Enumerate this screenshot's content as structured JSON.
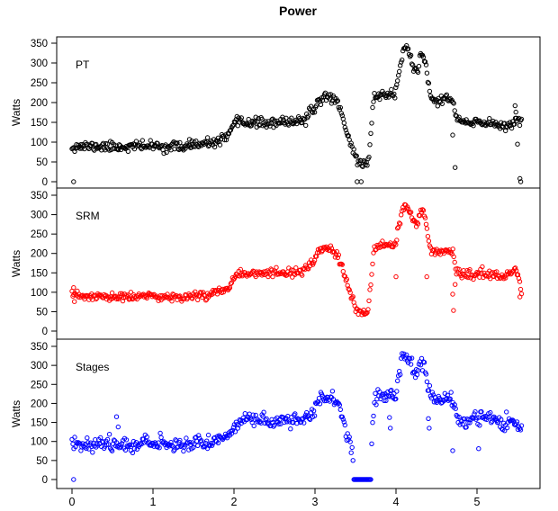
{
  "title": "Power",
  "y_axis_label": "Watts",
  "chart_data": {
    "type": "scatter",
    "title": "Power",
    "xlabel": "",
    "ylabel": "Watts",
    "point_style": "open-circle",
    "grid": false,
    "x_ticks": [
      0,
      1,
      2,
      3,
      4,
      5
    ],
    "y_ticks": [
      0,
      50,
      100,
      150,
      200,
      250,
      300,
      350
    ],
    "xlim": [
      -0.19,
      5.78
    ],
    "ylim": [
      0,
      350
    ],
    "x_range": [
      0,
      5.55
    ],
    "points_per_series": 505,
    "panels": [
      {
        "label": "PT",
        "color": "#000000",
        "seed": 11,
        "noise_sd": 6,
        "anchors": [
          [
            0,
            90
          ],
          [
            0.3,
            89
          ],
          [
            0.6,
            88
          ],
          [
            0.9,
            91
          ],
          [
            1.2,
            88
          ],
          [
            1.5,
            91
          ],
          [
            1.7,
            96
          ],
          [
            1.85,
            106
          ],
          [
            1.95,
            120
          ],
          [
            2.02,
            150
          ],
          [
            2.3,
            150
          ],
          [
            2.5,
            146
          ],
          [
            2.7,
            153
          ],
          [
            2.88,
            157
          ],
          [
            2.97,
            178
          ],
          [
            3.05,
            205
          ],
          [
            3.12,
            215
          ],
          [
            3.22,
            213
          ],
          [
            3.28,
            200
          ],
          [
            3.33,
            172
          ],
          [
            3.38,
            135
          ],
          [
            3.44,
            95
          ],
          [
            3.5,
            62
          ],
          [
            3.56,
            47
          ],
          [
            3.63,
            45
          ],
          [
            3.66,
            55
          ],
          [
            3.7,
            150
          ],
          [
            3.73,
            215
          ],
          [
            3.82,
            220
          ],
          [
            3.92,
            224
          ],
          [
            3.99,
            215
          ],
          [
            4.03,
            272
          ],
          [
            4.09,
            330
          ],
          [
            4.14,
            342
          ],
          [
            4.2,
            298
          ],
          [
            4.26,
            275
          ],
          [
            4.31,
            322
          ],
          [
            4.36,
            300
          ],
          [
            4.4,
            240
          ],
          [
            4.44,
            207
          ],
          [
            4.55,
            206
          ],
          [
            4.66,
            211
          ],
          [
            4.71,
            196
          ],
          [
            4.75,
            158
          ],
          [
            4.9,
            146
          ],
          [
            5.05,
            150
          ],
          [
            5.2,
            148
          ],
          [
            5.35,
            141
          ],
          [
            5.45,
            149
          ],
          [
            5.5,
            163
          ],
          [
            5.55,
            150
          ]
        ],
        "extra_points": [
          [
            0.02,
            0
          ],
          [
            1.45,
            107
          ],
          [
            1.48,
            103
          ],
          [
            3.52,
            0
          ],
          [
            3.57,
            0
          ],
          [
            4.7,
            118
          ],
          [
            4.73,
            36
          ],
          [
            5.47,
            192
          ],
          [
            5.48,
            176
          ],
          [
            5.5,
            95
          ],
          [
            5.53,
            8
          ],
          [
            5.54,
            0
          ]
        ]
      },
      {
        "label": "SRM",
        "color": "#ff0000",
        "seed": 23,
        "noise_sd": 5.5,
        "anchors": [
          [
            0,
            92
          ],
          [
            0.3,
            88
          ],
          [
            0.6,
            87
          ],
          [
            0.9,
            90
          ],
          [
            1.2,
            87
          ],
          [
            1.5,
            90
          ],
          [
            1.7,
            95
          ],
          [
            1.85,
            105
          ],
          [
            1.95,
            118
          ],
          [
            2.02,
            149
          ],
          [
            2.3,
            149
          ],
          [
            2.5,
            145
          ],
          [
            2.7,
            152
          ],
          [
            2.88,
            156
          ],
          [
            2.97,
            176
          ],
          [
            3.05,
            203
          ],
          [
            3.12,
            211
          ],
          [
            3.22,
            210
          ],
          [
            3.28,
            198
          ],
          [
            3.33,
            170
          ],
          [
            3.38,
            132
          ],
          [
            3.44,
            92
          ],
          [
            3.5,
            60
          ],
          [
            3.56,
            46
          ],
          [
            3.63,
            44
          ],
          [
            3.66,
            54
          ],
          [
            3.7,
            148
          ],
          [
            3.73,
            212
          ],
          [
            3.82,
            218
          ],
          [
            3.92,
            222
          ],
          [
            3.99,
            214
          ],
          [
            4.03,
            268
          ],
          [
            4.09,
            315
          ],
          [
            4.14,
            322
          ],
          [
            4.2,
            292
          ],
          [
            4.26,
            272
          ],
          [
            4.31,
            315
          ],
          [
            4.36,
            295
          ],
          [
            4.4,
            235
          ],
          [
            4.44,
            204
          ],
          [
            4.55,
            203
          ],
          [
            4.66,
            208
          ],
          [
            4.7,
            210
          ],
          [
            4.74,
            156
          ],
          [
            4.9,
            143
          ],
          [
            5.05,
            147
          ],
          [
            5.2,
            146
          ],
          [
            5.35,
            140
          ],
          [
            5.42,
            146
          ],
          [
            5.48,
            165
          ],
          [
            5.52,
            130
          ],
          [
            5.55,
            95
          ]
        ],
        "extra_points": [
          [
            0.02,
            112
          ],
          [
            0.03,
            76
          ],
          [
            4.0,
            140
          ],
          [
            4.38,
            140
          ],
          [
            4.7,
            95
          ],
          [
            4.71,
            53
          ],
          [
            4.73,
            120
          ],
          [
            5.53,
            88
          ]
        ]
      },
      {
        "label": "Stages",
        "color": "#0000ff",
        "seed": 37,
        "noise_sd": 9,
        "zero_span": [
          3.47,
          3.69
        ],
        "anchors": [
          [
            0,
            95
          ],
          [
            0.3,
            94
          ],
          [
            0.6,
            92
          ],
          [
            0.9,
            97
          ],
          [
            1.2,
            92
          ],
          [
            1.5,
            96
          ],
          [
            1.7,
            100
          ],
          [
            1.85,
            108
          ],
          [
            1.95,
            120
          ],
          [
            2.05,
            152
          ],
          [
            2.2,
            162
          ],
          [
            2.35,
            152
          ],
          [
            2.5,
            150
          ],
          [
            2.7,
            158
          ],
          [
            2.88,
            160
          ],
          [
            2.97,
            180
          ],
          [
            3.05,
            205
          ],
          [
            3.12,
            215
          ],
          [
            3.22,
            213
          ],
          [
            3.28,
            200
          ],
          [
            3.33,
            172
          ],
          [
            3.38,
            135
          ],
          [
            3.44,
            95
          ],
          [
            3.47,
            60
          ],
          [
            3.69,
            60
          ],
          [
            3.71,
            150
          ],
          [
            3.74,
            213
          ],
          [
            3.82,
            218
          ],
          [
            3.92,
            222
          ],
          [
            3.99,
            214
          ],
          [
            4.03,
            270
          ],
          [
            4.07,
            320
          ],
          [
            4.12,
            330
          ],
          [
            4.18,
            300
          ],
          [
            4.24,
            272
          ],
          [
            4.3,
            310
          ],
          [
            4.36,
            295
          ],
          [
            4.4,
            235
          ],
          [
            4.45,
            210
          ],
          [
            4.55,
            212
          ],
          [
            4.66,
            215
          ],
          [
            4.71,
            200
          ],
          [
            4.75,
            160
          ],
          [
            4.85,
            148
          ],
          [
            5.0,
            165
          ],
          [
            5.15,
            162
          ],
          [
            5.3,
            148
          ],
          [
            5.42,
            152
          ],
          [
            5.5,
            145
          ],
          [
            5.55,
            130
          ]
        ],
        "extra_points": [
          [
            0.02,
            0
          ],
          [
            0.55,
            165
          ],
          [
            0.57,
            138
          ],
          [
            3.92,
            163
          ],
          [
            3.93,
            135
          ],
          [
            4.4,
            160
          ],
          [
            4.41,
            135
          ],
          [
            4.7,
            76
          ],
          [
            5.02,
            81
          ]
        ]
      }
    ]
  }
}
